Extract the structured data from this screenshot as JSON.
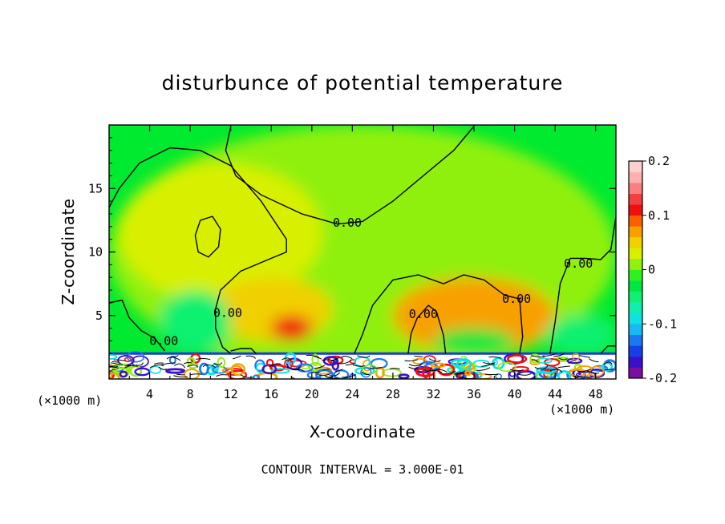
{
  "chart_data": {
    "type": "heatmap",
    "title": "disturbunce of potential temperature",
    "xlabel": "X-coordinate",
    "ylabel": "Z-coordinate",
    "x_unit": "(×1000 m)",
    "y_unit": "(×1000 m)",
    "xlim": [
      0,
      50
    ],
    "ylim": [
      0,
      20
    ],
    "x_ticks": [
      4,
      8,
      12,
      16,
      20,
      24,
      28,
      32,
      36,
      40,
      44,
      48
    ],
    "y_ticks": [
      5,
      10,
      15
    ],
    "footer": "CONTOUR INTERVAL = 3.000E-01",
    "colorbar": {
      "range": [
        -0.2,
        0.2
      ],
      "tick_labels": [
        "0.2",
        "0.1",
        "0",
        "-0.1",
        "-0.2"
      ],
      "tick_values": [
        0.2,
        0.1,
        0,
        -0.1,
        -0.2
      ],
      "colors": [
        "#7b0fa0",
        "#3a10c8",
        "#1540e8",
        "#1c78f0",
        "#18b8f0",
        "#10e0e0",
        "#10eeb0",
        "#10f070",
        "#00e640",
        "#30f020",
        "#90f010",
        "#d8f000",
        "#f0d000",
        "#f8a000",
        "#f86000",
        "#f01010",
        "#f04040",
        "#f88080",
        "#fcb0b0",
        "#fdd0d0"
      ]
    },
    "contour_labels": [
      {
        "text": "0.00",
        "x": 23.5,
        "z": 12.3
      },
      {
        "text": "0.00",
        "x": 46.3,
        "z": 9.1
      },
      {
        "text": "0.00",
        "x": 11.7,
        "z": 5.2
      },
      {
        "text": "0.00",
        "x": 31.0,
        "z": 5.1
      },
      {
        "text": "0.00",
        "x": 40.2,
        "z": 6.3
      },
      {
        "text": "0.00",
        "x": 5.4,
        "z": 3.0
      }
    ],
    "field_regions": [
      {
        "value": 0.01,
        "x": [
          0,
          50
        ],
        "z": [
          0,
          20
        ]
      },
      {
        "value": 0.03,
        "x": [
          1,
          21
        ],
        "z": [
          6,
          17
        ]
      },
      {
        "value": 0.05,
        "x": [
          10,
          22
        ],
        "z": [
          3,
          8
        ]
      },
      {
        "value": 0.06,
        "x": [
          28,
          44
        ],
        "z": [
          2,
          8
        ]
      },
      {
        "value": 0.1,
        "x": [
          16,
          20
        ],
        "z": [
          3,
          5
        ]
      },
      {
        "value": -0.05,
        "x": [
          5,
          12
        ],
        "z": [
          2,
          7
        ]
      },
      {
        "value": -0.05,
        "x": [
          43,
          50
        ],
        "z": [
          2,
          5
        ]
      },
      {
        "value": -0.03,
        "x": [
          32,
          40
        ],
        "z": [
          2,
          4
        ]
      }
    ]
  }
}
